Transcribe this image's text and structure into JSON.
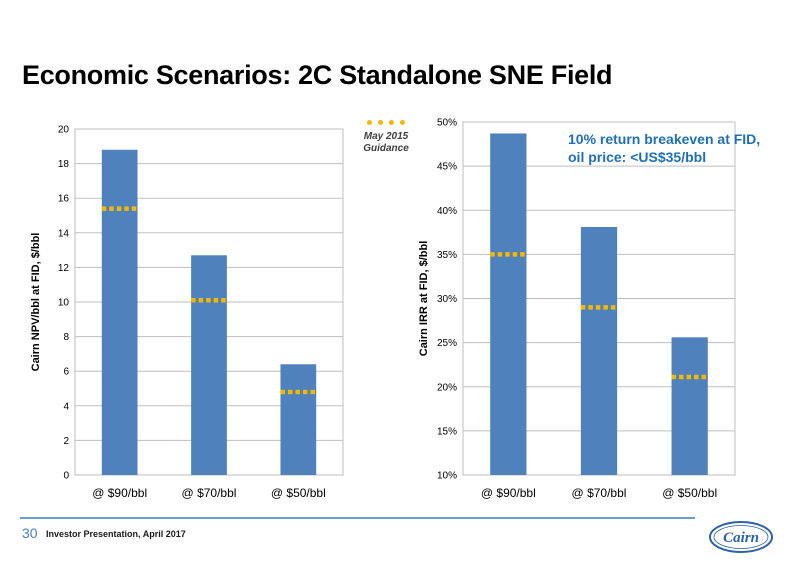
{
  "slide": {
    "title": "Economic Scenarios: 2C Standalone SNE Field",
    "page_number": "30",
    "footer_text": "Investor Presentation, April 2017",
    "logo_text": "Cairn",
    "legend_label_line1": "May 2015",
    "legend_label_line2": "Guidance",
    "annotation_line1": "10% return breakeven at FID,",
    "annotation_line2": "oil price: <US$35/bbl"
  },
  "colors": {
    "bar": "#4f81bd",
    "guidance": "#f5b800",
    "annotation": "#1f6fb5",
    "accent": "#4a7fbd"
  },
  "chart_data": [
    {
      "type": "bar",
      "title": "",
      "xlabel": "",
      "ylabel": "Cairn NPV/bbl at FID, $/bbl",
      "categories": [
        "@ $90/bbl",
        "@ $70/bbl",
        "@ $50/bbl"
      ],
      "series": [
        {
          "name": "",
          "values": [
            18.8,
            12.7,
            6.4
          ]
        },
        {
          "name": "May 2015 Guidance",
          "values": [
            15.4,
            10.1,
            4.8
          ],
          "style": "dotted-marker"
        }
      ],
      "ylim": [
        0,
        20
      ],
      "yticks": [
        0,
        2,
        4,
        6,
        8,
        10,
        12,
        14,
        16,
        18,
        20
      ],
      "ytick_labels": [
        "0",
        "2",
        "4",
        "6",
        "8",
        "10",
        "12",
        "14",
        "16",
        "18",
        "20"
      ],
      "grid": true,
      "legend": "top-right"
    },
    {
      "type": "bar",
      "title": "",
      "xlabel": "",
      "ylabel": "Cairn IRR at FID, $/bbl",
      "categories": [
        "@ $90/bbl",
        "@ $70/bbl",
        "@ $50/bbl"
      ],
      "series": [
        {
          "name": "",
          "values": [
            48.7,
            38.1,
            25.6
          ]
        },
        {
          "name": "May 2015 Guidance",
          "values": [
            35.0,
            29.0,
            21.1
          ],
          "style": "dotted-marker"
        }
      ],
      "ylim": [
        10,
        50
      ],
      "yticks": [
        10,
        15,
        20,
        25,
        30,
        35,
        40,
        45,
        50
      ],
      "ytick_labels": [
        "10%",
        "15%",
        "20%",
        "25%",
        "30%",
        "35%",
        "40%",
        "45%",
        "50%"
      ],
      "grid": true,
      "legend": "top-left"
    }
  ]
}
